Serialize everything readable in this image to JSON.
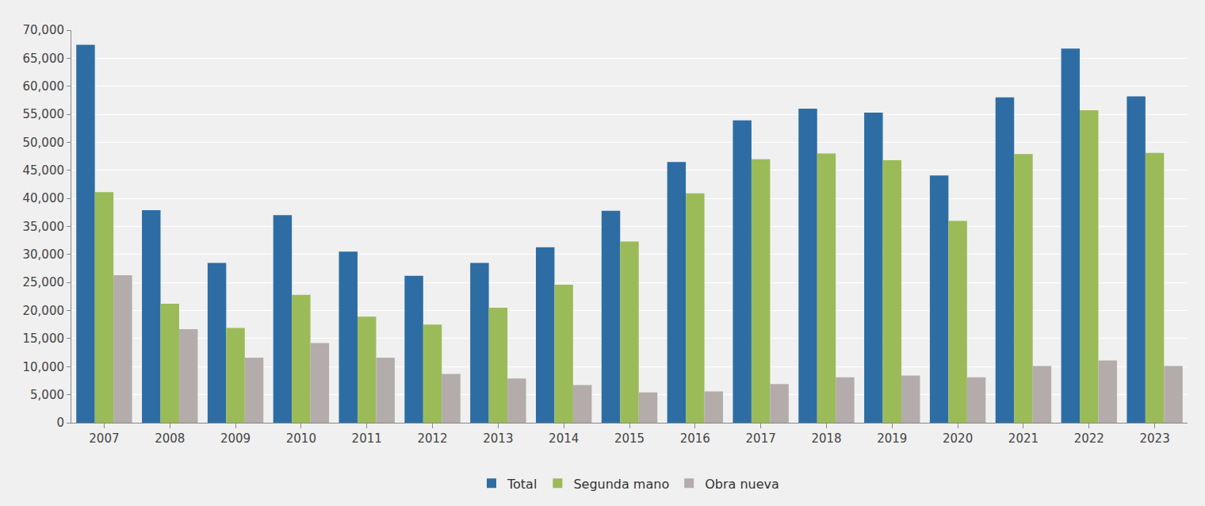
{
  "chart_data": {
    "type": "bar",
    "categories": [
      "2007",
      "2008",
      "2009",
      "2010",
      "2011",
      "2012",
      "2013",
      "2014",
      "2015",
      "2016",
      "2017",
      "2018",
      "2019",
      "2020",
      "2021",
      "2022",
      "2023"
    ],
    "series": [
      {
        "name": "Total",
        "color": "#2e6da4",
        "values": [
          67400,
          37900,
          28500,
          37000,
          30500,
          26200,
          28500,
          31300,
          37800,
          46500,
          53900,
          56000,
          55300,
          44100,
          58000,
          66700,
          58200
        ]
      },
      {
        "name": "Segunda mano",
        "color": "#9bbb59",
        "values": [
          41100,
          21200,
          16900,
          22800,
          18900,
          17500,
          20500,
          24600,
          32300,
          40900,
          47000,
          48000,
          46800,
          36000,
          47900,
          55700,
          48100
        ]
      },
      {
        "name": "Obra nueva",
        "color": "#b3acab",
        "values": [
          26300,
          16700,
          11600,
          14200,
          11600,
          8700,
          7900,
          6700,
          5400,
          5600,
          6900,
          8100,
          8400,
          8100,
          10100,
          11100,
          10100
        ]
      }
    ],
    "ylim": [
      0,
      70000
    ],
    "yticks": [
      0,
      {
        "value": 5000,
        "label": "5,000"
      },
      {
        "value": 10000,
        "label": "10,000"
      },
      {
        "value": 15000,
        "label": "15,000"
      },
      {
        "value": 20000,
        "label": "20,000"
      },
      {
        "value": 25000,
        "label": "25,000"
      },
      {
        "value": 30000,
        "label": "30,000"
      },
      {
        "value": 35000,
        "label": "35,000"
      },
      {
        "value": 40000,
        "label": "40,000"
      },
      {
        "value": 45000,
        "label": "45,000"
      },
      {
        "value": 50000,
        "label": "50,000"
      },
      {
        "value": 55000,
        "label": "55,000"
      },
      {
        "value": 60000,
        "label": "60,000"
      },
      {
        "value": 65000,
        "label": "65,000"
      },
      {
        "value": 70000,
        "label": "70,000"
      }
    ],
    "grid": true,
    "legend": "bottom"
  }
}
